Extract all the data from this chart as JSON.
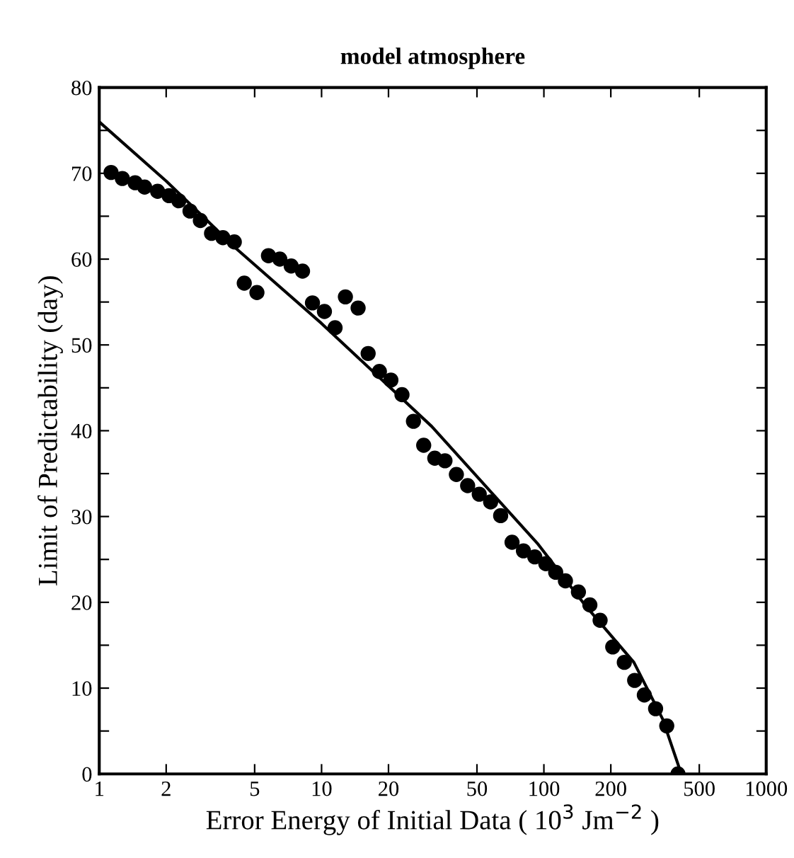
{
  "chart_data": {
    "type": "scatter",
    "title": "model atmosphere",
    "xlabel": "Error Energy of Initial Data ( 10$^{3}$ Jm$^{−2}$ )",
    "ylabel": "Limit of Predictability (day)",
    "log": "x",
    "xlim": [
      1,
      1000
    ],
    "ylim": [
      0,
      80
    ],
    "xticks": [
      1,
      2,
      5,
      10,
      20,
      50,
      100,
      200,
      500,
      1000
    ],
    "yticks": [
      0,
      {
        "value": 5,
        "label": null
      },
      10,
      {
        "value": 15,
        "label": null
      },
      20,
      {
        "value": 25,
        "label": null
      },
      30,
      {
        "value": 35,
        "label": null
      },
      40,
      {
        "value": 45,
        "label": null
      },
      50,
      {
        "value": 55,
        "label": null
      },
      60,
      {
        "value": 65,
        "label": null
      },
      70,
      {
        "value": 75,
        "label": null
      },
      80
    ],
    "grid": false,
    "marker": "circle",
    "series": [
      {
        "type": "scatter",
        "color": "#000000",
        "x": [
          1.13,
          1.27,
          1.45,
          1.6,
          1.83,
          2.06,
          2.28,
          2.56,
          2.85,
          3.2,
          3.6,
          4.05,
          4.49,
          5.12,
          5.77,
          6.49,
          7.3,
          8.21,
          9.1,
          10.3,
          11.5,
          12.8,
          14.6,
          16.2,
          18.2,
          20.5,
          23.0,
          25.9,
          28.8,
          32.3,
          35.9,
          40.4,
          45.4,
          51.2,
          57.6,
          63.9,
          71.9,
          80.9,
          91.0,
          102,
          113,
          125,
          143,
          161,
          179,
          204,
          230,
          256,
          283,
          318,
          357,
          401
        ],
        "values": [
          70.1,
          69.4,
          68.9,
          68.4,
          67.9,
          67.4,
          66.8,
          65.6,
          64.5,
          63.0,
          62.5,
          62.0,
          57.2,
          56.1,
          60.4,
          60.0,
          59.2,
          58.6,
          54.9,
          53.9,
          52.0,
          55.6,
          54.3,
          49.0,
          46.9,
          45.9,
          44.2,
          41.1,
          38.3,
          36.8,
          36.5,
          34.9,
          33.6,
          32.6,
          31.7,
          30.1,
          27.0,
          26.0,
          25.3,
          24.5,
          23.5,
          22.5,
          21.2,
          19.7,
          17.9,
          14.8,
          13.0,
          10.9,
          9.2,
          7.6,
          5.6,
          0
        ]
      },
      {
        "type": "line",
        "color": "#000000",
        "line_style": "solid",
        "marker": "none",
        "x": [
          1,
          2,
          4.1,
          10,
          31.3,
          94,
          154,
          254,
          342,
          415
        ],
        "values": [
          76,
          69.1,
          61.3,
          52.5,
          40.5,
          26.8,
          19.6,
          13.0,
          6.4,
          0
        ]
      }
    ]
  }
}
